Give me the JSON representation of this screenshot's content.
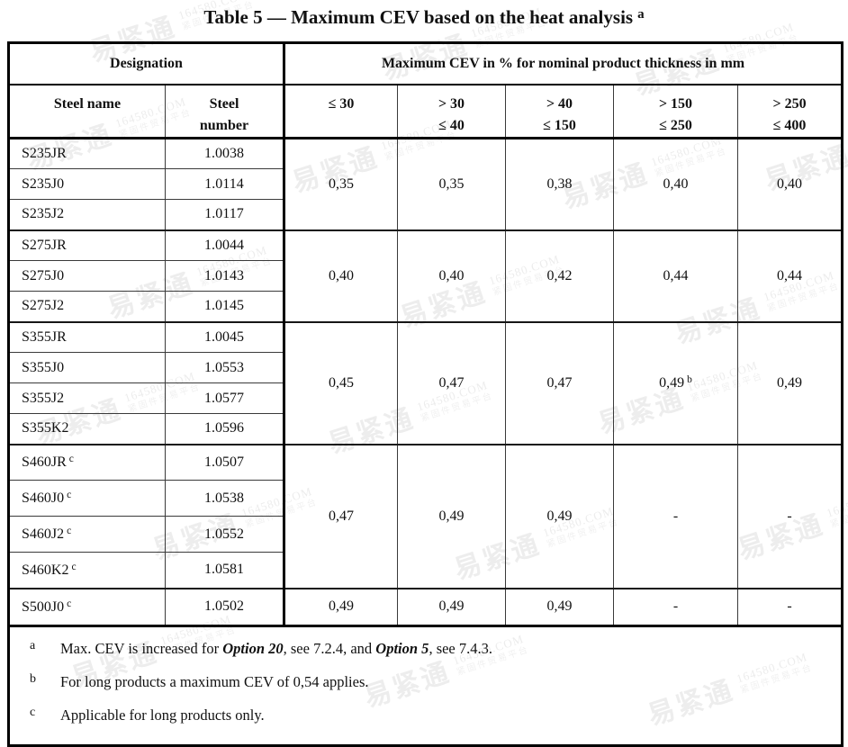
{
  "title": {
    "text": "Table 5 — Maximum CEV based on the heat analysis",
    "sup": "a"
  },
  "header": {
    "designation": "Designation",
    "steel_name": "Steel name",
    "steel_number": {
      "l1": "Steel",
      "l2": "number"
    },
    "cev_span": "Maximum CEV in % for nominal product thickness in mm",
    "thickness_cols": [
      {
        "l1": "≤ 30",
        "l2": ""
      },
      {
        "l1": "> 30",
        "l2": "≤ 40"
      },
      {
        "l1": "> 40",
        "l2": "≤ 150"
      },
      {
        "l1": "> 150",
        "l2": "≤ 250"
      },
      {
        "l1": "> 250",
        "l2": "≤ 400"
      }
    ]
  },
  "groups": [
    {
      "rows": [
        {
          "name": "S235JR",
          "sup": "",
          "number": "1.0038"
        },
        {
          "name": "S235J0",
          "sup": "",
          "number": "1.0114"
        },
        {
          "name": "S235J2",
          "sup": "",
          "number": "1.0117"
        }
      ],
      "cev": [
        {
          "v": "0,35",
          "sup": ""
        },
        {
          "v": "0,35",
          "sup": ""
        },
        {
          "v": "0,38",
          "sup": ""
        },
        {
          "v": "0,40",
          "sup": ""
        },
        {
          "v": "0,40",
          "sup": ""
        }
      ]
    },
    {
      "rows": [
        {
          "name": "S275JR",
          "sup": "",
          "number": "1.0044"
        },
        {
          "name": "S275J0",
          "sup": "",
          "number": "1.0143"
        },
        {
          "name": "S275J2",
          "sup": "",
          "number": "1.0145"
        }
      ],
      "cev": [
        {
          "v": "0,40",
          "sup": ""
        },
        {
          "v": "0,40",
          "sup": ""
        },
        {
          "v": "0,42",
          "sup": ""
        },
        {
          "v": "0,44",
          "sup": ""
        },
        {
          "v": "0,44",
          "sup": ""
        }
      ]
    },
    {
      "rows": [
        {
          "name": "S355JR",
          "sup": "",
          "number": "1.0045"
        },
        {
          "name": "S355J0",
          "sup": "",
          "number": "1.0553"
        },
        {
          "name": "S355J2",
          "sup": "",
          "number": "1.0577"
        },
        {
          "name": "S355K2",
          "sup": "",
          "number": "1.0596"
        }
      ],
      "cev": [
        {
          "v": "0,45",
          "sup": ""
        },
        {
          "v": "0,47",
          "sup": ""
        },
        {
          "v": "0,47",
          "sup": ""
        },
        {
          "v": "0,49",
          "sup": "b"
        },
        {
          "v": "0,49",
          "sup": ""
        }
      ]
    },
    {
      "rows": [
        {
          "name": "S460JR",
          "sup": "c",
          "number": "1.0507"
        },
        {
          "name": "S460J0",
          "sup": "c",
          "number": "1.0538"
        },
        {
          "name": "S460J2",
          "sup": "c",
          "number": "1.0552"
        },
        {
          "name": "S460K2",
          "sup": "c",
          "number": "1.0581"
        }
      ],
      "cev": [
        {
          "v": "0,47",
          "sup": ""
        },
        {
          "v": "0,49",
          "sup": ""
        },
        {
          "v": "0,49",
          "sup": ""
        },
        {
          "v": "-",
          "sup": ""
        },
        {
          "v": "-",
          "sup": ""
        }
      ]
    },
    {
      "rows": [
        {
          "name": "S500J0",
          "sup": "c",
          "number": "1.0502"
        }
      ],
      "cev": [
        {
          "v": "0,49",
          "sup": ""
        },
        {
          "v": "0,49",
          "sup": ""
        },
        {
          "v": "0,49",
          "sup": ""
        },
        {
          "v": "-",
          "sup": ""
        },
        {
          "v": "-",
          "sup": ""
        }
      ]
    }
  ],
  "footnotes": [
    {
      "ref": "a",
      "parts": [
        "Max. CEV is increased for ",
        "Option 20",
        ", see 7.2.4, and ",
        "Option 5",
        ", see 7.4.3."
      ]
    },
    {
      "ref": "b",
      "text": "For long products a maximum CEV of 0,54 applies."
    },
    {
      "ref": "c",
      "text": "Applicable for long products only."
    }
  ],
  "watermark": {
    "logo": "易紧通",
    "domain": "164580.COM",
    "tagline": "紧固件贸易平台"
  }
}
